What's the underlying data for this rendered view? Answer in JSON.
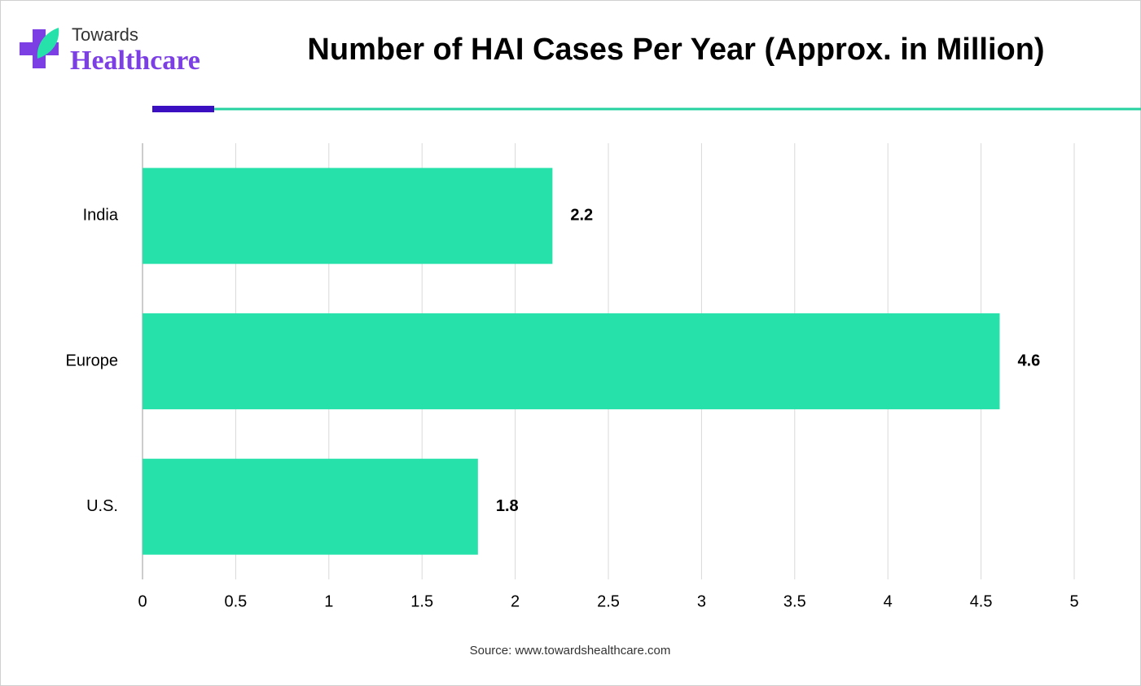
{
  "logo": {
    "line1": "Towards",
    "line2": "Healthcare"
  },
  "chart_data": {
    "type": "bar",
    "orientation": "horizontal",
    "title": "Number of HAI Cases Per Year (Approx. in Million)",
    "categories": [
      "India",
      "Europe",
      "U.S."
    ],
    "values": [
      2.2,
      4.6,
      1.8
    ],
    "color": "#26e2aa",
    "xlim": [
      0,
      5
    ],
    "xticks": [
      0,
      0.5,
      1,
      1.5,
      2,
      2.5,
      3,
      3.5,
      4,
      4.5,
      5
    ],
    "grid": true,
    "source": "Source: www.towardshealthcare.com"
  }
}
